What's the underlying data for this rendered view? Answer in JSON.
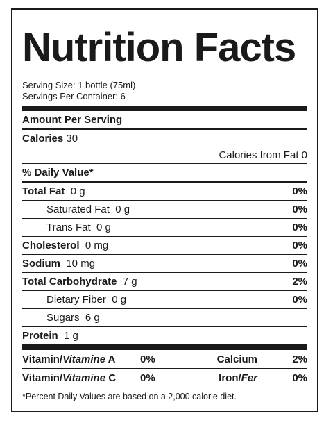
{
  "title": "Nutrition Facts",
  "serving_size": "Serving Size: 1 bottle (75ml)",
  "servings_per_container": "Servings Per Container: 6",
  "amount_per_serving": "Amount Per Serving",
  "calories": {
    "label": "Calories",
    "value": "30"
  },
  "calories_from_fat": "Calories from Fat 0",
  "daily_value_header": "% Daily Value*",
  "nutrients": [
    {
      "label": "Total Fat",
      "amount": "0 g",
      "percent": "0%"
    },
    {
      "label": "Saturated Fat",
      "amount": "0 g",
      "percent": "0%"
    },
    {
      "label": "Trans Fat",
      "amount": "0 g",
      "percent": "0%"
    },
    {
      "label": "Cholesterol",
      "amount": "0 mg",
      "percent": "0%"
    },
    {
      "label": "Sodium",
      "amount": "10 mg",
      "percent": "0%"
    },
    {
      "label": "Total Carbohydrate",
      "amount": "7 g",
      "percent": "2%"
    },
    {
      "label": "Dietary Fiber",
      "amount": "0 g",
      "percent": "0%"
    },
    {
      "label": "Sugars",
      "amount": "6 g",
      "percent": ""
    },
    {
      "label": "Protein",
      "amount": "1 g",
      "percent": ""
    }
  ],
  "vitamins": {
    "a": {
      "prefix": "Vitamin/",
      "italic": "Vitamine",
      "suffix": " A",
      "percent": "0%"
    },
    "c": {
      "prefix": "Vitamin/",
      "italic": "Vitamine",
      "suffix": " C",
      "percent": "0%"
    },
    "calcium": {
      "label": "Calcium",
      "percent": "2%"
    },
    "iron": {
      "prefix": "Iron/",
      "italic": "Fer",
      "percent": "0%"
    }
  },
  "footnote": "*Percent Daily Values are based on a 2,000 calorie diet."
}
